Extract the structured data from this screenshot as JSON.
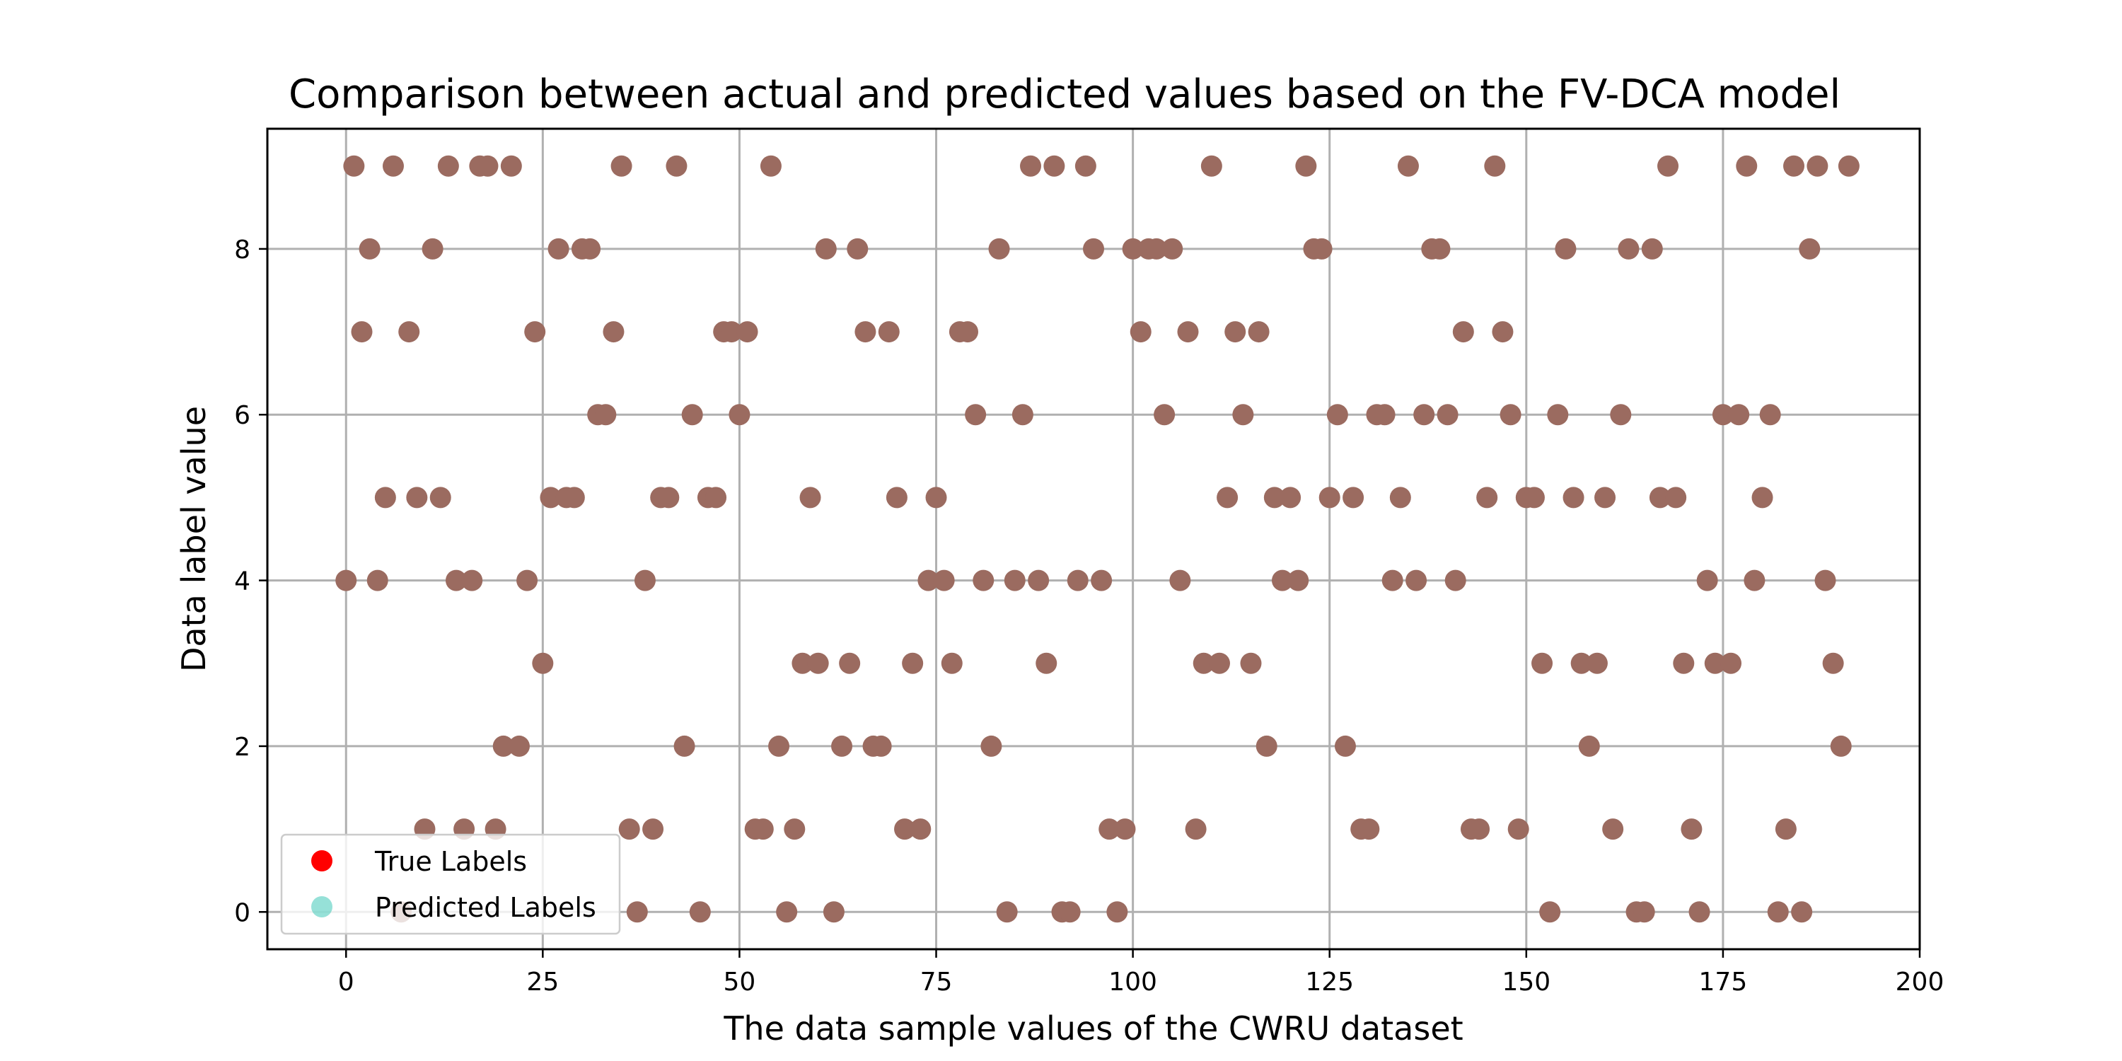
{
  "chart_data": {
    "type": "scatter",
    "title": "Comparison between actual and predicted values based on the FV-DCA model",
    "xlabel": "The data sample values of the CWRU dataset",
    "ylabel": "Data label value",
    "xlim": [
      -10,
      200
    ],
    "ylim": [
      -0.45,
      9.45
    ],
    "x_ticks": [
      0,
      25,
      50,
      75,
      100,
      125,
      150,
      175,
      200
    ],
    "y_ticks": [
      0,
      2,
      4,
      6,
      8
    ],
    "grid": true,
    "legend_position": "lower-left",
    "series": [
      {
        "name": "True Labels",
        "color": "#ff0000",
        "x": [
          0,
          1,
          2,
          3,
          4,
          5,
          6,
          7,
          8,
          9,
          10,
          11,
          12,
          13,
          14,
          15,
          16,
          17,
          18,
          19,
          20,
          21,
          22,
          23,
          24,
          25,
          26,
          27,
          28,
          29,
          30,
          31,
          32,
          33,
          34,
          35,
          36,
          37,
          38,
          39,
          40,
          41,
          42,
          43,
          44,
          45,
          46,
          47,
          48,
          49,
          50,
          51,
          52,
          53,
          54,
          55,
          56,
          57,
          58,
          59,
          60,
          61,
          62,
          63,
          64,
          65,
          66,
          67,
          68,
          69,
          70,
          71,
          72,
          73,
          74,
          75,
          76,
          77,
          78,
          79,
          80,
          81,
          82,
          83,
          84,
          85,
          86,
          87,
          88,
          89,
          90,
          91,
          92,
          93,
          94,
          95,
          96,
          97,
          98,
          99,
          100,
          101,
          102,
          103,
          104,
          105,
          106,
          107,
          108,
          109,
          110,
          111,
          112,
          113,
          114,
          115,
          116,
          117,
          118,
          119,
          120,
          121,
          122,
          123,
          124,
          125,
          126,
          127,
          128,
          129,
          130,
          131,
          132,
          133,
          134,
          135,
          136,
          137,
          138,
          139,
          140,
          141,
          142,
          143,
          144,
          145,
          146,
          147,
          148,
          149,
          150,
          151,
          152,
          153,
          154,
          155,
          156,
          157,
          158,
          159,
          160,
          161,
          162,
          163,
          164,
          165,
          166,
          167,
          168,
          169,
          170,
          171,
          172,
          173,
          174,
          175,
          176,
          177,
          178,
          179,
          180,
          181,
          182,
          183,
          184,
          185,
          186,
          187,
          188,
          189,
          190,
          191
        ],
        "y": [
          4,
          9,
          7,
          8,
          4,
          5,
          9,
          0,
          7,
          5,
          1,
          8,
          5,
          9,
          4,
          1,
          4,
          9,
          9,
          1,
          2,
          9,
          2,
          4,
          7,
          3,
          5,
          8,
          5,
          5,
          8,
          8,
          6,
          6,
          7,
          9,
          1,
          0,
          4,
          1,
          5,
          5,
          9,
          2,
          6,
          0,
          5,
          5,
          7,
          7,
          6,
          7,
          1,
          1,
          9,
          2,
          0,
          1,
          3,
          5,
          3,
          8,
          0,
          2,
          3,
          8,
          7,
          2,
          2,
          7,
          5,
          1,
          3,
          1,
          4,
          5,
          4,
          3,
          7,
          7,
          6,
          4,
          2,
          8,
          0,
          4,
          6,
          9,
          4,
          3,
          9,
          0,
          0,
          4,
          9,
          8,
          4,
          1,
          0,
          1,
          8,
          7,
          8,
          8,
          6,
          8,
          4,
          7,
          1,
          3,
          9,
          3,
          5,
          7,
          6,
          3,
          7,
          2,
          5,
          4,
          5,
          4,
          9,
          8,
          8,
          5,
          6,
          2,
          5,
          1,
          1,
          6,
          6,
          4,
          5,
          9,
          4,
          6,
          8,
          8,
          6,
          4,
          7,
          1,
          1,
          5,
          9,
          7,
          6,
          1,
          5,
          5,
          3,
          0,
          6,
          8,
          5,
          3,
          2,
          3,
          5,
          1,
          6,
          8,
          0,
          0,
          8,
          5,
          9,
          5,
          3,
          1,
          0,
          4,
          3,
          6,
          3,
          6,
          9,
          4,
          5,
          6,
          0,
          1,
          9,
          0,
          8,
          9,
          4,
          3,
          2,
          9
        ]
      },
      {
        "name": "Predicted Labels",
        "color": "#40c8b8",
        "x": [
          0,
          1,
          2,
          3,
          4,
          5,
          6,
          7,
          8,
          9,
          10,
          11,
          12,
          13,
          14,
          15,
          16,
          17,
          18,
          19,
          20,
          21,
          22,
          23,
          24,
          25,
          26,
          27,
          28,
          29,
          30,
          31,
          32,
          33,
          34,
          35,
          36,
          37,
          38,
          39,
          40,
          41,
          42,
          43,
          44,
          45,
          46,
          47,
          48,
          49,
          50,
          51,
          52,
          53,
          54,
          55,
          56,
          57,
          58,
          59,
          60,
          61,
          62,
          63,
          64,
          65,
          66,
          67,
          68,
          69,
          70,
          71,
          72,
          73,
          74,
          75,
          76,
          77,
          78,
          79,
          80,
          81,
          82,
          83,
          84,
          85,
          86,
          87,
          88,
          89,
          90,
          91,
          92,
          93,
          94,
          95,
          96,
          97,
          98,
          99,
          100,
          101,
          102,
          103,
          104,
          105,
          106,
          107,
          108,
          109,
          110,
          111,
          112,
          113,
          114,
          115,
          116,
          117,
          118,
          119,
          120,
          121,
          122,
          123,
          124,
          125,
          126,
          127,
          128,
          129,
          130,
          131,
          132,
          133,
          134,
          135,
          136,
          137,
          138,
          139,
          140,
          141,
          142,
          143,
          144,
          145,
          146,
          147,
          148,
          149,
          150,
          151,
          152,
          153,
          154,
          155,
          156,
          157,
          158,
          159,
          160,
          161,
          162,
          163,
          164,
          165,
          166,
          167,
          168,
          169,
          170,
          171,
          172,
          173,
          174,
          175,
          176,
          177,
          178,
          179,
          180,
          181,
          182,
          183,
          184,
          185,
          186,
          187,
          188,
          189,
          190,
          191
        ],
        "y": [
          4,
          9,
          7,
          8,
          4,
          5,
          9,
          0,
          7,
          5,
          1,
          8,
          5,
          9,
          4,
          1,
          4,
          9,
          9,
          1,
          2,
          9,
          2,
          4,
          7,
          3,
          5,
          8,
          5,
          5,
          8,
          8,
          6,
          6,
          7,
          9,
          1,
          0,
          4,
          1,
          5,
          5,
          9,
          2,
          6,
          0,
          5,
          5,
          7,
          7,
          6,
          7,
          1,
          1,
          9,
          2,
          0,
          1,
          3,
          5,
          3,
          8,
          0,
          2,
          3,
          8,
          7,
          2,
          2,
          7,
          5,
          1,
          3,
          1,
          4,
          5,
          4,
          3,
          7,
          7,
          6,
          4,
          2,
          8,
          0,
          4,
          6,
          9,
          4,
          3,
          9,
          0,
          0,
          4,
          9,
          8,
          4,
          1,
          0,
          1,
          8,
          7,
          8,
          8,
          6,
          8,
          4,
          7,
          1,
          3,
          9,
          3,
          5,
          7,
          6,
          3,
          7,
          2,
          5,
          4,
          5,
          4,
          9,
          8,
          8,
          5,
          6,
          2,
          5,
          1,
          1,
          6,
          6,
          4,
          5,
          9,
          4,
          6,
          8,
          8,
          6,
          4,
          7,
          1,
          1,
          5,
          9,
          7,
          6,
          1,
          5,
          5,
          3,
          0,
          6,
          8,
          5,
          3,
          2,
          3,
          5,
          1,
          6,
          8,
          0,
          0,
          8,
          5,
          9,
          5,
          3,
          1,
          0,
          4,
          3,
          6,
          3,
          6,
          9,
          4,
          5,
          6,
          0,
          1,
          9,
          0,
          8,
          9,
          4,
          3,
          2,
          9
        ]
      }
    ]
  }
}
